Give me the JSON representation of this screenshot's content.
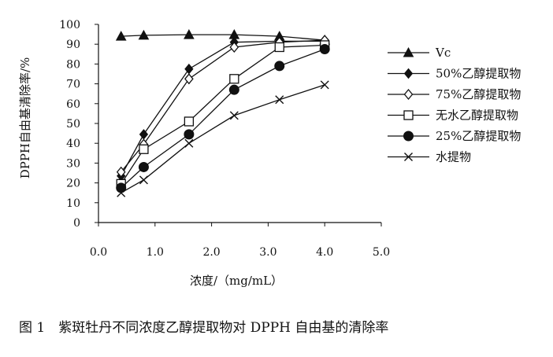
{
  "caption": "图 1　紫斑牡丹不同浓度乙醇提取物对 DPPH 自由基的清除率",
  "chart_data": {
    "type": "line",
    "xlabel": "浓度/（mg/mL）",
    "ylabel": "DPPH自由基清除率/%",
    "xlim": [
      0,
      5
    ],
    "ylim": [
      0,
      100
    ],
    "x_ticks": [
      "0.0",
      "1.0",
      "2.0",
      "3.0",
      "4.0",
      "5.0"
    ],
    "y_ticks": [
      "0",
      "10",
      "20",
      "30",
      "40",
      "50",
      "60",
      "70",
      "80",
      "90",
      "100"
    ],
    "grid": false,
    "legend_position": "right",
    "x": [
      0.4,
      0.8,
      1.6,
      2.4,
      3.2,
      4.0
    ],
    "series": [
      {
        "name": "Vc",
        "marker": "filled-triangle",
        "values": [
          94,
          94.5,
          94.8,
          94.8,
          94,
          92
        ]
      },
      {
        "name": "50%乙醇提取物",
        "marker": "filled-diamond",
        "values": [
          23.5,
          44.5,
          77.5,
          91,
          91.5,
          91.5
        ]
      },
      {
        "name": "75%乙醇提取物",
        "marker": "open-diamond",
        "values": [
          25.5,
          39.5,
          72.5,
          88.5,
          91,
          92
        ]
      },
      {
        "name": "无水乙醇提取物",
        "marker": "open-square",
        "values": [
          19.5,
          37,
          51,
          72.5,
          88.5,
          89.5
        ]
      },
      {
        "name": "25%乙醇提取物",
        "marker": "filled-circle",
        "values": [
          17.5,
          28,
          44.5,
          67,
          79,
          87.5
        ]
      },
      {
        "name": "水提物",
        "marker": "cross",
        "values": [
          15,
          21.5,
          40,
          54,
          62,
          69.5
        ]
      }
    ]
  }
}
